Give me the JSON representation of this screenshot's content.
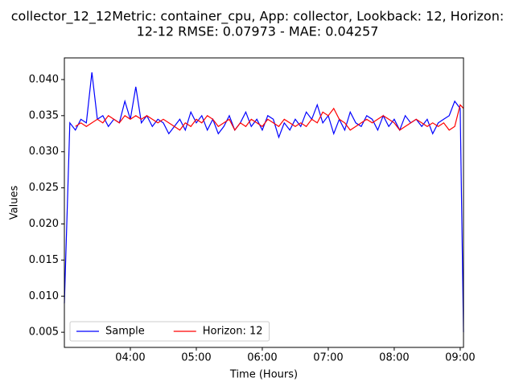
{
  "chart_data": {
    "type": "line",
    "title": [
      "collector_12_12Metric: container_cpu, App: collector, Lookback: 12, Horizon:",
      "12-12 RMSE: 0.07973 - MAE: 0.04257"
    ],
    "x_label": "Time (Hours)",
    "y_label": "Values",
    "x": [
      3,
      3.083,
      3.167,
      3.25,
      3.333,
      3.417,
      3.5,
      3.583,
      3.667,
      3.75,
      3.833,
      3.917,
      4,
      4.083,
      4.167,
      4.25,
      4.333,
      4.417,
      4.5,
      4.583,
      4.667,
      4.75,
      4.833,
      4.917,
      5,
      5.083,
      5.167,
      5.25,
      5.333,
      5.417,
      5.5,
      5.583,
      5.667,
      5.75,
      5.833,
      5.917,
      6,
      6.083,
      6.167,
      6.25,
      6.333,
      6.417,
      6.5,
      6.583,
      6.667,
      6.75,
      6.833,
      6.917,
      7,
      7.083,
      7.167,
      7.25,
      7.333,
      7.417,
      7.5,
      7.583,
      7.667,
      7.75,
      7.833,
      7.917,
      8,
      8.083,
      8.167,
      8.25,
      8.333,
      8.417,
      8.5,
      8.583,
      8.667,
      8.75,
      8.833,
      8.917,
      9,
      9.05
    ],
    "series": [
      {
        "name": "Sample",
        "color": "#0000ff",
        "values": [
          0.009,
          0.034,
          0.033,
          0.0345,
          0.034,
          0.041,
          0.0345,
          0.035,
          0.0335,
          0.0345,
          0.034,
          0.037,
          0.0345,
          0.039,
          0.034,
          0.035,
          0.0335,
          0.0345,
          0.034,
          0.0325,
          0.0335,
          0.0345,
          0.033,
          0.0355,
          0.034,
          0.035,
          0.033,
          0.0345,
          0.0325,
          0.0335,
          0.035,
          0.033,
          0.034,
          0.0355,
          0.0335,
          0.0345,
          0.033,
          0.035,
          0.0345,
          0.032,
          0.034,
          0.033,
          0.0345,
          0.0335,
          0.0355,
          0.0345,
          0.0365,
          0.034,
          0.035,
          0.0325,
          0.0345,
          0.033,
          0.0355,
          0.034,
          0.0335,
          0.035,
          0.0345,
          0.033,
          0.035,
          0.0335,
          0.0345,
          0.033,
          0.035,
          0.034,
          0.0345,
          0.0335,
          0.0345,
          0.0325,
          0.034,
          0.0345,
          0.035,
          0.037,
          0.036,
          0.005
        ]
      },
      {
        "name": "Horizon: 12",
        "color": "#ff0000",
        "values": [
          null,
          null,
          0.0335,
          0.034,
          0.0335,
          0.034,
          0.0345,
          0.034,
          0.035,
          0.0345,
          0.034,
          0.035,
          0.0345,
          0.035,
          0.0345,
          0.035,
          0.0345,
          0.034,
          0.0345,
          0.034,
          0.0335,
          0.033,
          0.034,
          0.0335,
          0.0345,
          0.034,
          0.035,
          0.0345,
          0.0335,
          0.034,
          0.0345,
          0.033,
          0.034,
          0.0335,
          0.0345,
          0.034,
          0.0335,
          0.0345,
          0.034,
          0.0335,
          0.0345,
          0.034,
          0.0335,
          0.034,
          0.0335,
          0.0345,
          0.034,
          0.0355,
          0.035,
          0.036,
          0.0345,
          0.034,
          0.033,
          0.0335,
          0.034,
          0.0345,
          0.034,
          0.0345,
          0.035,
          0.0345,
          0.034,
          0.033,
          0.0335,
          0.034,
          0.0345,
          0.034,
          0.0335,
          0.034,
          0.0335,
          0.034,
          0.033,
          0.0335,
          0.0365,
          0.036
        ]
      }
    ],
    "xlim": [
      3,
      9.05
    ],
    "xticks": [
      {
        "value": 4,
        "label": "04:00"
      },
      {
        "value": 5,
        "label": "05:00"
      },
      {
        "value": 6,
        "label": "06:00"
      },
      {
        "value": 7,
        "label": "07:00"
      },
      {
        "value": 8,
        "label": "08:00"
      },
      {
        "value": 9,
        "label": "09:00"
      }
    ],
    "ylim": [
      0.0029,
      0.043
    ],
    "yticks": [
      0.005,
      {
        "value": 0.01,
        "label": "0.010"
      },
      0.015,
      {
        "value": 0.02,
        "label": "0.020"
      },
      0.025,
      {
        "value": 0.03,
        "label": "0.030"
      },
      0.035,
      {
        "value": 0.04,
        "label": "0.040"
      }
    ],
    "legend": "lower left",
    "grid": false
  }
}
